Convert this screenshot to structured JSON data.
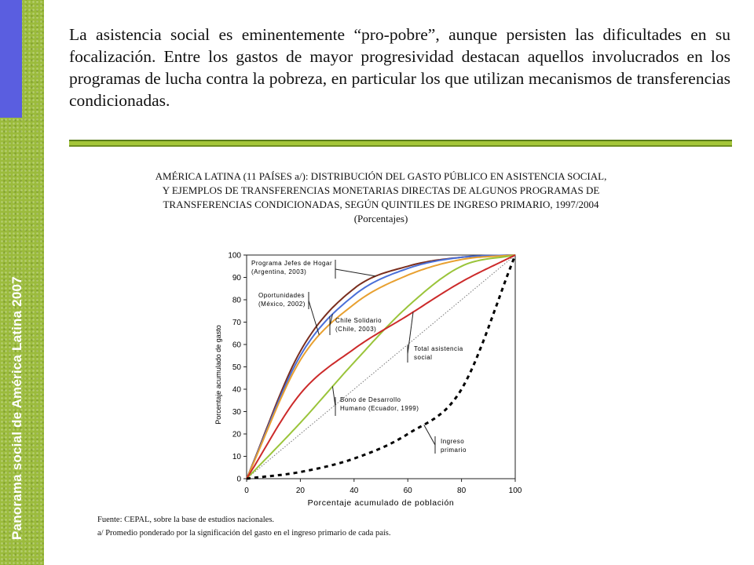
{
  "sidebar": {
    "title": "Panorama social de América Latina 2007"
  },
  "intro": {
    "paragraph": "La asistencia social es eminentemente “pro-pobre”, aunque persisten las dificultades en su focalización. Entre los gastos de mayor progresividad destacan aquellos involucrados en los programas de lucha contra la pobreza, en particular los que utilizan mecanismos de transferencias condicionadas."
  },
  "figure": {
    "title_lines": [
      "AMÉRICA LATINA (11 PAÍSES a/): DISTRIBUCIÓN DEL GASTO PÚBLICO EN ASISTENCIA SOCIAL,",
      "Y EJEMPLOS DE TRANSFERENCIAS MONETARIAS DIRECTAS DE ALGUNOS PROGRAMAS DE",
      "TRANSFERENCIAS CONDICIONADAS, SEGÚN QUINTILES DE INGRESO PRIMARIO, 1997/2004",
      "(Porcentajes)"
    ],
    "source": "Fuente: CEPAL, sobre la base de estudios nacionales.",
    "footnote": "a/ Promedio ponderado por la significación del gasto en el ingreso primario de cada país."
  },
  "chart_data": {
    "type": "line",
    "xlabel": "Porcentaje acumulado de población",
    "ylabel": "Porcentaje acumulado de gasto",
    "xlim": [
      0,
      100
    ],
    "ylim": [
      0,
      100
    ],
    "xticks": [
      0,
      20,
      40,
      60,
      80,
      100
    ],
    "yticks": [
      0,
      10,
      20,
      30,
      40,
      50,
      60,
      70,
      80,
      90,
      100
    ],
    "grid": false,
    "series": [
      {
        "name": "Programa Jefes de Hogar (Argentina, 2003)",
        "color": "#7a2e1e",
        "x": [
          0,
          20,
          40,
          60,
          80,
          100
        ],
        "y": [
          0,
          57,
          85,
          95,
          99,
          100
        ]
      },
      {
        "name": "Chile Solidario (Chile, 2003)",
        "color": "#4a6fd8",
        "x": [
          0,
          20,
          40,
          60,
          80,
          100
        ],
        "y": [
          0,
          55,
          82,
          94,
          99,
          100
        ]
      },
      {
        "name": "Oportunidades (México, 2002)",
        "color": "#e8a030",
        "x": [
          0,
          20,
          40,
          60,
          80,
          100
        ],
        "y": [
          0,
          53,
          78,
          91,
          98,
          100
        ]
      },
      {
        "name": "Bono de Desarrollo Humano (Ecuador, 1999)",
        "color": "#9ac43a",
        "x": [
          0,
          20,
          40,
          60,
          80,
          100
        ],
        "y": [
          0,
          25,
          52,
          77,
          95,
          100
        ]
      },
      {
        "name": "Total asistencia social",
        "color": "#cc2a2a",
        "x": [
          0,
          20,
          40,
          60,
          80,
          100
        ],
        "y": [
          0,
          38,
          58,
          73,
          88,
          100
        ]
      },
      {
        "name": "Ingreso primario",
        "color": "#000000",
        "dash": "dashed",
        "x": [
          0,
          20,
          40,
          60,
          80,
          100
        ],
        "y": [
          0,
          3,
          9,
          20,
          40,
          100
        ]
      }
    ],
    "diagonal": {
      "x": [
        0,
        100
      ],
      "y": [
        0,
        100
      ],
      "style": "dotted"
    },
    "annotations": [
      {
        "series": 0,
        "lines": [
          "Programa Jefes de Hogar",
          "(Argentina, 2003)"
        ]
      },
      {
        "series": 2,
        "lines": [
          "Oportunidades",
          "(México, 2002)"
        ]
      },
      {
        "series": 1,
        "lines": [
          "Chile Solidario",
          "(Chile, 2003)"
        ]
      },
      {
        "series": 4,
        "lines": [
          "Total asistencia",
          "social"
        ]
      },
      {
        "series": 3,
        "lines": [
          "Bono de Desarrollo",
          "Humano (Ecuador, 1999)"
        ]
      },
      {
        "series": 5,
        "lines": [
          "Ingreso",
          "primario"
        ]
      }
    ]
  }
}
